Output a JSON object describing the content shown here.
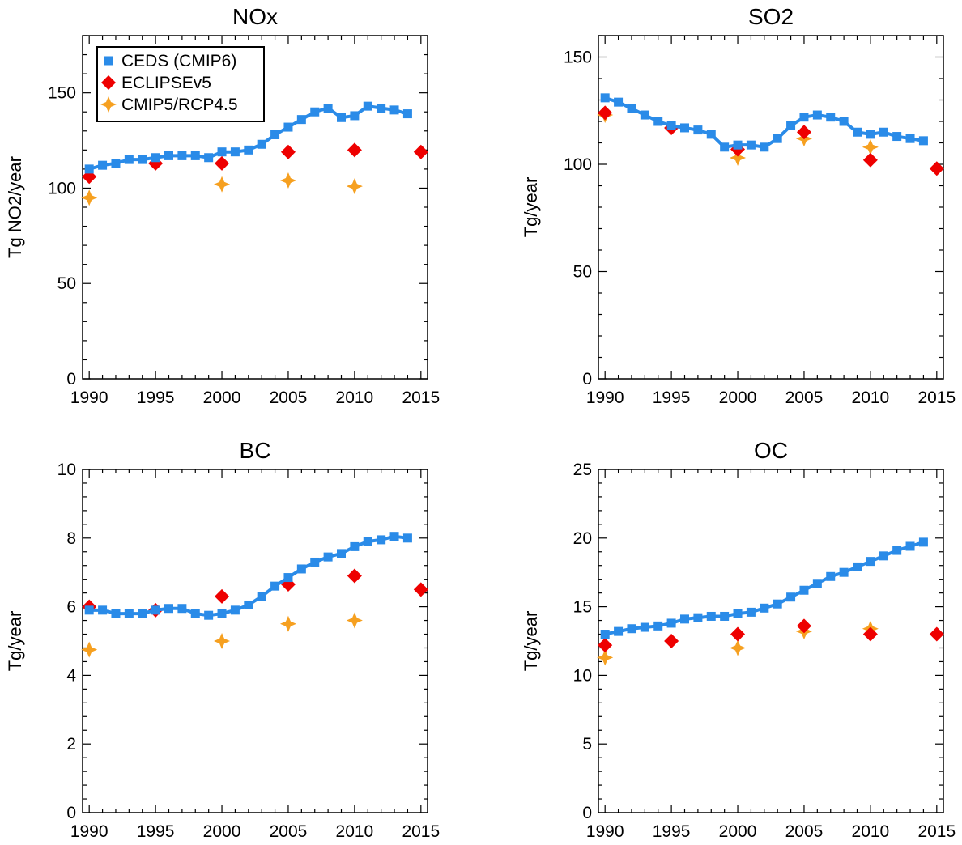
{
  "colors": {
    "ceds": "#2a8be8",
    "eclipse": "#ee0000",
    "cmip5": "#f6a020"
  },
  "legend": [
    {
      "name": "CEDS (CMIP6)",
      "marker": "square",
      "color_key": "ceds"
    },
    {
      "name": "ECLIPSEv5",
      "marker": "diamond",
      "color_key": "eclipse"
    },
    {
      "name": "CMIP5/RCP4.5",
      "marker": "star",
      "color_key": "cmip5"
    }
  ],
  "chart_data": [
    {
      "type": "line",
      "title": "NOx",
      "xlabel": "",
      "ylabel": "Tg NO2/year",
      "xlim": [
        1989.5,
        2015.5
      ],
      "ylim": [
        0,
        180
      ],
      "xticks": [
        1990,
        1995,
        2000,
        2005,
        2010,
        2015
      ],
      "yticks": [
        0,
        50,
        100,
        150
      ],
      "series": [
        {
          "name": "CEDS (CMIP6)",
          "color_key": "ceds",
          "marker": "square",
          "x": [
            1990,
            1991,
            1992,
            1993,
            1994,
            1995,
            1996,
            1997,
            1998,
            1999,
            2000,
            2001,
            2002,
            2003,
            2004,
            2005,
            2006,
            2007,
            2008,
            2009,
            2010,
            2011,
            2012,
            2013,
            2014
          ],
          "y": [
            110,
            112,
            113,
            115,
            115,
            116,
            117,
            117,
            117,
            116,
            119,
            119,
            120,
            123,
            128,
            132,
            136,
            140,
            142,
            137,
            138,
            143,
            142,
            141,
            139
          ]
        },
        {
          "name": "ECLIPSEv5",
          "color_key": "eclipse",
          "marker": "diamond",
          "x": [
            1990,
            1995,
            2000,
            2005,
            2010,
            2015
          ],
          "y": [
            106,
            113,
            113,
            119,
            120,
            119
          ]
        },
        {
          "name": "CMIP5/RCP4.5",
          "color_key": "cmip5",
          "marker": "star",
          "x": [
            1990,
            2000,
            2005,
            2010
          ],
          "y": [
            95,
            102,
            104,
            101
          ]
        }
      ]
    },
    {
      "type": "line",
      "title": "SO2",
      "xlabel": "",
      "ylabel": "Tg/year",
      "xlim": [
        1989.5,
        2015.5
      ],
      "ylim": [
        0,
        160
      ],
      "xticks": [
        1990,
        1995,
        2000,
        2005,
        2010,
        2015
      ],
      "yticks": [
        0,
        50,
        100,
        150
      ],
      "series": [
        {
          "name": "CEDS (CMIP6)",
          "color_key": "ceds",
          "marker": "square",
          "x": [
            1990,
            1991,
            1992,
            1993,
            1994,
            1995,
            1996,
            1997,
            1998,
            1999,
            2000,
            2001,
            2002,
            2003,
            2004,
            2005,
            2006,
            2007,
            2008,
            2009,
            2010,
            2011,
            2012,
            2013,
            2014
          ],
          "y": [
            131,
            129,
            126,
            123,
            120,
            118,
            117,
            116,
            114,
            108,
            109,
            109,
            108,
            112,
            118,
            122,
            123,
            122,
            120,
            115,
            114,
            115,
            113,
            112,
            111
          ]
        },
        {
          "name": "ECLIPSEv5",
          "color_key": "eclipse",
          "marker": "diamond",
          "x": [
            1990,
            1995,
            2000,
            2005,
            2010,
            2015
          ],
          "y": [
            124,
            117,
            107,
            115,
            102,
            98
          ]
        },
        {
          "name": "CMIP5/RCP4.5",
          "color_key": "cmip5",
          "marker": "star",
          "x": [
            1990,
            2000,
            2005,
            2010
          ],
          "y": [
            123,
            103,
            112,
            108
          ]
        }
      ]
    },
    {
      "type": "line",
      "title": "BC",
      "xlabel": "",
      "ylabel": "Tg/year",
      "xlim": [
        1989.5,
        2015.5
      ],
      "ylim": [
        0,
        10
      ],
      "xticks": [
        1990,
        1995,
        2000,
        2005,
        2010,
        2015
      ],
      "yticks": [
        0,
        2,
        4,
        6,
        8,
        10
      ],
      "series": [
        {
          "name": "CEDS (CMIP6)",
          "color_key": "ceds",
          "marker": "square",
          "x": [
            1990,
            1991,
            1992,
            1993,
            1994,
            1995,
            1996,
            1997,
            1998,
            1999,
            2000,
            2001,
            2002,
            2003,
            2004,
            2005,
            2006,
            2007,
            2008,
            2009,
            2010,
            2011,
            2012,
            2013,
            2014
          ],
          "y": [
            5.9,
            5.9,
            5.8,
            5.8,
            5.8,
            5.9,
            5.95,
            5.95,
            5.8,
            5.75,
            5.8,
            5.9,
            6.05,
            6.3,
            6.6,
            6.85,
            7.1,
            7.3,
            7.45,
            7.55,
            7.75,
            7.9,
            7.95,
            8.05,
            8.0
          ]
        },
        {
          "name": "ECLIPSEv5",
          "color_key": "eclipse",
          "marker": "diamond",
          "x": [
            1990,
            1995,
            2000,
            2005,
            2010,
            2015
          ],
          "y": [
            6.0,
            5.9,
            6.3,
            6.65,
            6.9,
            6.5
          ]
        },
        {
          "name": "CMIP5/RCP4.5",
          "color_key": "cmip5",
          "marker": "star",
          "x": [
            1990,
            2000,
            2005,
            2010
          ],
          "y": [
            4.75,
            5.0,
            5.5,
            5.6
          ]
        }
      ]
    },
    {
      "type": "line",
      "title": "OC",
      "xlabel": "",
      "ylabel": "Tg/year",
      "xlim": [
        1989.5,
        2015.5
      ],
      "ylim": [
        0,
        25
      ],
      "xticks": [
        1990,
        1995,
        2000,
        2005,
        2010,
        2015
      ],
      "yticks": [
        0,
        5,
        10,
        15,
        20,
        25
      ],
      "series": [
        {
          "name": "CEDS (CMIP6)",
          "color_key": "ceds",
          "marker": "square",
          "x": [
            1990,
            1991,
            1992,
            1993,
            1994,
            1995,
            1996,
            1997,
            1998,
            1999,
            2000,
            2001,
            2002,
            2003,
            2004,
            2005,
            2006,
            2007,
            2008,
            2009,
            2010,
            2011,
            2012,
            2013,
            2014
          ],
          "y": [
            13.0,
            13.2,
            13.4,
            13.5,
            13.6,
            13.8,
            14.1,
            14.2,
            14.3,
            14.3,
            14.5,
            14.6,
            14.9,
            15.2,
            15.7,
            16.2,
            16.7,
            17.2,
            17.5,
            17.9,
            18.3,
            18.7,
            19.1,
            19.4,
            19.7
          ]
        },
        {
          "name": "ECLIPSEv5",
          "color_key": "eclipse",
          "marker": "diamond",
          "x": [
            1990,
            1995,
            2000,
            2005,
            2010,
            2015
          ],
          "y": [
            12.2,
            12.5,
            13.0,
            13.6,
            13.0,
            13.0
          ]
        },
        {
          "name": "CMIP5/RCP4.5",
          "color_key": "cmip5",
          "marker": "star",
          "x": [
            1990,
            2000,
            2005,
            2010
          ],
          "y": [
            11.3,
            12.0,
            13.2,
            13.4
          ]
        }
      ]
    }
  ]
}
